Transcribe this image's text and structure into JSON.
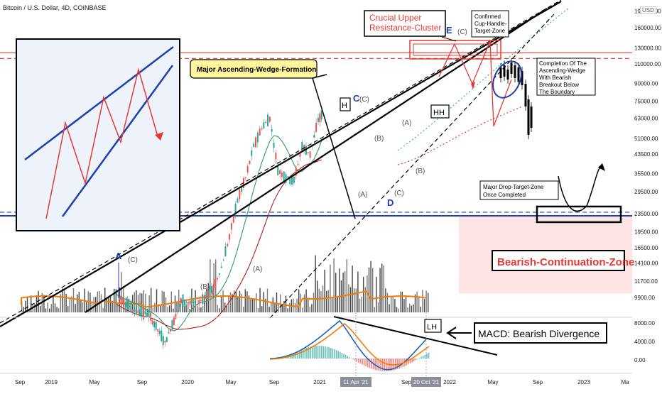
{
  "header": {
    "symbol": "Bitcoin / U.S. Dollar, 4D, COINBASE",
    "currency": "USD"
  },
  "chart_data": {
    "type": "line",
    "title": "",
    "y_scale": "log",
    "ylim": [
      9000,
      195000
    ],
    "price_axis_ticks": [
      "190000.00",
      "160000.00",
      "130000.00",
      "110000.00",
      "90000.00",
      "75000.00",
      "63000.00",
      "51000.00",
      "43500.00",
      "35500.00",
      "29500.00",
      "23500.00",
      "19500.00",
      "16500.00",
      "14100.00",
      "11700.00",
      "9900.00"
    ],
    "macd_axis_ticks": [
      "8000.00",
      "4000.00",
      "0.00"
    ],
    "time_axis_ticks": [
      "Sep",
      "2019",
      "May",
      "Sep",
      "2020",
      "May",
      "Sep",
      "2021",
      "May",
      "Sep",
      "2022",
      "May",
      "Sep",
      "2023",
      "Ma"
    ],
    "highlighted_dates": [
      "11 Apr '21",
      "20 Oct '21"
    ],
    "grid": false,
    "levels": {
      "upper_resistance_cluster": 120000,
      "drop_target": 23500
    },
    "series": [
      {
        "name": "",
        "values": [
          {
            "date": "2019-09",
            "price": 10200
          },
          {
            "date": "2019-11",
            "price": 8700
          },
          {
            "date": "2020-01",
            "price": 8300
          },
          {
            "date": "2020-03",
            "price": 6200
          },
          {
            "date": "2020-05",
            "price": 9500
          },
          {
            "date": "2020-07",
            "price": 9300
          },
          {
            "date": "2020-09",
            "price": 10800
          },
          {
            "date": "2020-10",
            "price": 13500
          },
          {
            "date": "2020-11",
            "price": 18500
          },
          {
            "date": "2020-12",
            "price": 27000
          },
          {
            "date": "2021-01",
            "price": 34000
          },
          {
            "date": "2021-02",
            "price": 47000
          },
          {
            "date": "2021-03",
            "price": 57000
          },
          {
            "date": "2021-04",
            "price": 63000
          },
          {
            "date": "2021-05",
            "price": 37000
          },
          {
            "date": "2021-06",
            "price": 34000
          },
          {
            "date": "2021-07",
            "price": 33000
          },
          {
            "date": "2021-08",
            "price": 47000
          },
          {
            "date": "2021-09",
            "price": 43500
          },
          {
            "date": "2021-10",
            "price": 62000
          },
          {
            "date": "2021-10-20",
            "price": 66000
          }
        ]
      }
    ],
    "projection": [
      {
        "date": "2021-11",
        "price": 90000
      },
      {
        "date": "2021-12",
        "price": 63000
      },
      {
        "date": "2022-01",
        "price": 128000
      },
      {
        "date": "2022-02",
        "price": 88000
      },
      {
        "date": "2022-03",
        "price": 60000
      },
      {
        "date": "2022-04",
        "price": 95000
      },
      {
        "date": "2022-05",
        "price": 108000
      },
      {
        "date": "2022-06",
        "price": 98000
      },
      {
        "date": "2022-07",
        "price": 48000
      }
    ]
  },
  "annotations": {
    "resistance_box": "Crucial Upper\nResistance-Cluster",
    "cup_handle": "Confirmed\nCup-Handle-\nTarget-Zone",
    "wedge_label": "Major Ascending-Wedge-Formation",
    "completion": "Completion Of The\nAscending-Wedge\nWith Bearish\nBreakout Below\nThe Boundary",
    "drop_target": "Major Drop-Target-Zone\nOnce Completed",
    "bearish_zone": "Bearish-Continuation-Zone",
    "macd_label": "MACD: Bearish Divergence",
    "wave_labels": {
      "E": "E",
      "C": "C",
      "D": "D",
      "A": "A",
      "H": "H",
      "HH": "HH",
      "LH": "LH",
      "pA": "(A)",
      "pB": "(B)",
      "pC": "(C)"
    }
  },
  "colors": {
    "red": "#e53935",
    "blue": "#1e3fb0",
    "black": "#000000",
    "yellow": "#fff59d",
    "pink_zone": "#fde4e4",
    "green_ma": "#2e9c62",
    "candle_up": "#26a69a",
    "candle_down": "#ef5350",
    "orange": "#f57c00"
  }
}
